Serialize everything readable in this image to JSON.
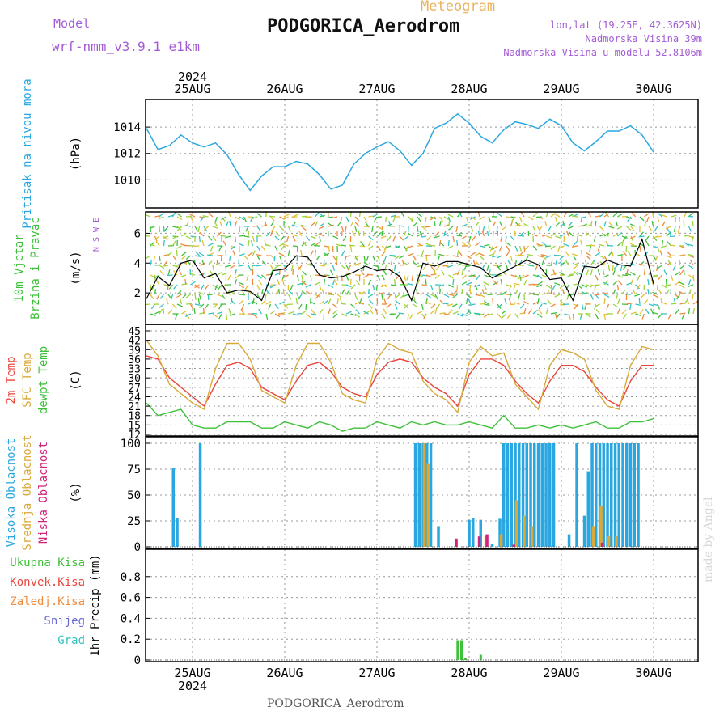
{
  "header": {
    "model_label": "Model",
    "model_name": "wrf-nmm_v3.9.1 e1km",
    "title": "Meteogram",
    "station": "PODGORICA_Aerodrom",
    "lonlat": "lon,lat (19.25E, 42.3625N)",
    "elevation": "Nadmorska Visina 39m",
    "model_elevation": "Nadmorska Visina u modelu 52.8106m",
    "footer_station": "PODGORICA_Aerodrom",
    "watermark": "made by Angel"
  },
  "colors": {
    "pressure": "#2aa7e0",
    "t2m": "#e8453c",
    "sfc": "#d9a93a",
    "dewpoint": "#3ec13a",
    "high_cloud": "#2aa7e0",
    "mid_cloud": "#d9a93a",
    "low_cloud": "#d2237a",
    "header_purple": "#a45bd6",
    "header_orange": "#e9b35d"
  },
  "time_axis": {
    "year_top": "2024",
    "year_bottom": "2024",
    "days": [
      "25AUG",
      "26AUG",
      "27AUG",
      "28AUG",
      "29AUG",
      "30AUG"
    ]
  },
  "chart_data": [
    {
      "type": "line",
      "panel": "pressure",
      "ylabel_lines": [
        "Pritisak na nivou mora"
      ],
      "unit": "(hPa)",
      "ylim": [
        1008,
        1015.6
      ],
      "yticks": [
        1010,
        1012,
        1014
      ],
      "grid": true,
      "x_unit": "hours since 24 Aug 2024 12:00 UTC",
      "series": [
        {
          "color_key": "pressure",
          "x": [
            0,
            3,
            6,
            9,
            12,
            15,
            18,
            21,
            24,
            27,
            30,
            33,
            36,
            39,
            42,
            45,
            48,
            51,
            54,
            57,
            60,
            63,
            66,
            69,
            72,
            75,
            78,
            81,
            84,
            87,
            90,
            93,
            96,
            99,
            102,
            105,
            108,
            111,
            114,
            117,
            120,
            123,
            126,
            129,
            132,
            135,
            138,
            141,
            144,
            147
          ],
          "y": [
            1013.9,
            1012.3,
            1012.6,
            1013.4,
            1012.8,
            1012.5,
            1012.8,
            1011.9,
            1010.4,
            1009.2,
            1010.3,
            1011.0,
            1011.0,
            1011.4,
            1011.2,
            1010.4,
            1009.3,
            1009.6,
            1011.2,
            1012.0,
            1012.5,
            1012.9,
            1012.2,
            1011.1,
            1012.0,
            1013.9,
            1014.3,
            1015.0,
            1014.3,
            1013.3,
            1012.8,
            1013.8,
            1014.4,
            1014.2,
            1013.9,
            1014.6,
            1014.1,
            1012.8,
            1012.2,
            1012.9,
            1013.7,
            1013.7,
            1014.1,
            1013.4,
            1012.1,
            null,
            null,
            null,
            null,
            null
          ]
        }
      ]
    },
    {
      "type": "line",
      "panel": "wind",
      "ylabel_lines": [
        "10m Vjetar",
        "Brzina i Pravac"
      ],
      "unit": "(m/s)",
      "compass": "N S W E",
      "ylim": [
        0,
        7
      ],
      "yticks": [
        2,
        4,
        6
      ],
      "grid": true,
      "x_unit": "hours since 24 Aug 2024 12:00 UTC",
      "series": [
        {
          "name": "wind speed",
          "x": [
            0,
            3,
            6,
            9,
            12,
            15,
            18,
            21,
            24,
            27,
            30,
            33,
            36,
            39,
            42,
            45,
            48,
            51,
            54,
            57,
            60,
            63,
            66,
            69,
            72,
            75,
            78,
            81,
            84,
            87,
            90,
            93,
            96,
            99,
            102,
            105,
            108,
            111,
            114,
            117,
            120,
            123,
            126,
            129,
            132
          ],
          "y": [
            1.6,
            3.1,
            2.5,
            4.0,
            4.2,
            3.0,
            3.3,
            2.0,
            2.2,
            2.1,
            1.5,
            3.5,
            3.6,
            4.5,
            4.4,
            3.2,
            3.0,
            3.1,
            3.4,
            3.8,
            3.5,
            3.6,
            3.1,
            1.5,
            4.0,
            3.8,
            4.1,
            4.1,
            3.9,
            3.7,
            3.0,
            3.4,
            3.8,
            4.2,
            3.9,
            2.9,
            3.0,
            1.5,
            3.8,
            3.7,
            4.2,
            3.9,
            3.8,
            5.6,
            2.6
          ]
        }
      ]
    },
    {
      "type": "line",
      "panel": "temperature",
      "ylabel_lines": [
        "2m Temp",
        "SFC Temp",
        "dewpt Temp"
      ],
      "unit": "(C)",
      "ylim": [
        12,
        45
      ],
      "yticks": [
        12,
        15,
        18,
        21,
        24,
        27,
        30,
        33,
        36,
        39,
        42,
        45
      ],
      "grid": true,
      "x_unit": "hours since 24 Aug 2024 12:00 UTC",
      "series": [
        {
          "name": "2m Temp",
          "color_key": "t2m",
          "x": [
            0,
            3,
            6,
            9,
            12,
            15,
            18,
            21,
            24,
            27,
            30,
            33,
            36,
            39,
            42,
            45,
            48,
            51,
            54,
            57,
            60,
            63,
            66,
            69,
            72,
            75,
            78,
            81,
            84,
            87,
            90,
            93,
            96,
            99,
            102,
            105,
            108,
            111,
            114,
            117,
            120,
            123,
            126,
            129,
            132
          ],
          "y": [
            37,
            36,
            30,
            27,
            24,
            21,
            28,
            34,
            35,
            33,
            27,
            25,
            23,
            29,
            34,
            35,
            32,
            27,
            25,
            24,
            31,
            35,
            36,
            35,
            30,
            27,
            25,
            21,
            31,
            36,
            36,
            34,
            29,
            25,
            22,
            29,
            34,
            34,
            32,
            27,
            23,
            21,
            29,
            34,
            34
          ]
        },
        {
          "name": "SFC Temp",
          "color_key": "sfc",
          "x": [
            0,
            3,
            6,
            9,
            12,
            15,
            18,
            21,
            24,
            27,
            30,
            33,
            36,
            39,
            42,
            45,
            48,
            51,
            54,
            57,
            60,
            63,
            66,
            69,
            72,
            75,
            78,
            81,
            84,
            87,
            90,
            93,
            96,
            99,
            102,
            105,
            108,
            111,
            114,
            117,
            120,
            123,
            126,
            129,
            132
          ],
          "y": [
            42,
            37,
            28,
            25,
            22,
            20,
            33,
            41,
            41,
            36,
            26,
            24,
            22,
            34,
            41,
            41,
            35,
            25,
            23,
            22,
            36,
            41,
            39,
            38,
            29,
            25,
            23,
            19,
            35,
            40,
            37,
            38,
            28,
            24,
            20,
            34,
            39,
            38,
            36,
            26,
            21,
            20,
            34,
            40,
            39
          ]
        },
        {
          "name": "dewpt Temp",
          "color_key": "dewpoint",
          "x": [
            0,
            3,
            6,
            9,
            12,
            15,
            18,
            21,
            24,
            27,
            30,
            33,
            36,
            39,
            42,
            45,
            48,
            51,
            54,
            57,
            60,
            63,
            66,
            69,
            72,
            75,
            78,
            81,
            84,
            87,
            90,
            93,
            96,
            99,
            102,
            105,
            108,
            111,
            114,
            117,
            120,
            123,
            126,
            129,
            132
          ],
          "y": [
            22,
            18,
            19,
            20,
            15,
            14,
            14,
            16,
            16,
            16,
            14,
            14,
            16,
            15,
            14,
            16,
            15,
            13,
            14,
            14,
            16,
            15,
            14,
            16,
            15,
            16,
            15,
            15,
            16,
            15,
            14,
            18,
            14,
            14,
            15,
            14,
            15,
            14,
            15,
            16,
            14,
            14,
            16,
            16,
            17
          ]
        }
      ]
    },
    {
      "type": "bar",
      "panel": "clouds",
      "ylabel_lines": [
        "Visoka Oblacnost",
        "Srednja Oblacnost",
        "Niska Oblacnost"
      ],
      "unit": "(%)",
      "ylim": [
        0,
        100
      ],
      "yticks": [
        0,
        25,
        50,
        75,
        100
      ],
      "grid": true,
      "x_unit": "hours since 24 Aug 2024 12:00 UTC",
      "series": [
        {
          "name": "Visoka Oblacnost",
          "color_key": "high_cloud",
          "x": [
            7,
            8,
            14,
            70,
            71,
            72,
            73,
            74,
            76,
            84,
            85,
            87,
            90,
            92,
            93,
            94,
            95,
            96,
            97,
            98,
            99,
            100,
            101,
            102,
            103,
            104,
            105,
            106,
            110,
            112,
            114,
            115,
            116,
            117,
            118,
            119,
            120,
            121,
            122,
            123,
            124,
            125,
            126,
            127,
            128
          ],
          "y": [
            76,
            28,
            100,
            100,
            100,
            100,
            100,
            100,
            20,
            26,
            28,
            26,
            3,
            27,
            100,
            100,
            100,
            100,
            100,
            100,
            100,
            100,
            100,
            100,
            100,
            100,
            100,
            100,
            12,
            100,
            30,
            73,
            100,
            100,
            100,
            100,
            100,
            100,
            100,
            100,
            100,
            100,
            100,
            100,
            100
          ]
        },
        {
          "name": "Srednja Oblacnost",
          "color_key": "mid_cloud",
          "x": [
            72,
            73,
            88,
            92,
            96,
            98,
            100,
            116,
            118,
            120,
            122
          ],
          "y": [
            100,
            80,
            10,
            12,
            45,
            30,
            20,
            20,
            40,
            10,
            10
          ]
        },
        {
          "name": "Niska Oblacnost",
          "color_key": "low_cloud",
          "x": [
            80,
            86,
            88,
            95,
            118
          ],
          "y": [
            8,
            10,
            12,
            2,
            4
          ]
        }
      ]
    },
    {
      "type": "bar",
      "panel": "precipitation",
      "ylabel_lines": [
        "1hr Precip (mm)"
      ],
      "legend": [
        "Ukupna Kisa",
        "Konvek.Kisa",
        "Zaledj.Kisa",
        "Snijeg",
        "Grad"
      ],
      "legend_colors": [
        "#3ec13a",
        "#e8453c",
        "#f08a3b",
        "#6b6bd6",
        "#34c2c2"
      ],
      "ylim": [
        0,
        1.0
      ],
      "yticks": [
        0,
        0.2,
        0.4,
        0.6,
        0.8
      ],
      "ytick_labels": [
        "0",
        "0.2",
        "0.4",
        "0.6",
        "0.8"
      ],
      "grid": true,
      "x_unit": "hours since 24 Aug 2024 12:00 UTC",
      "series": [
        {
          "name": "Ukupna Kisa",
          "color_key": "dewpoint",
          "x": [
            81,
            82,
            83,
            84,
            87
          ],
          "y": [
            0.19,
            0.19,
            0.02,
            0.0,
            0.05
          ]
        }
      ]
    }
  ]
}
